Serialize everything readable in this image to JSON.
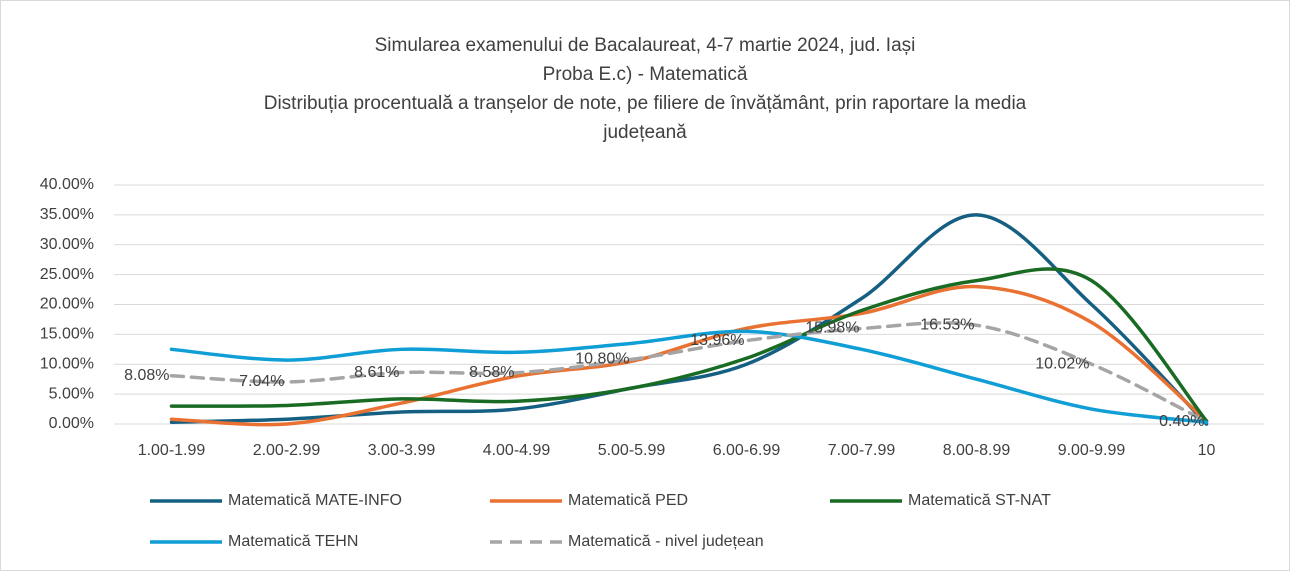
{
  "chart_data": {
    "type": "line",
    "title": [
      "Simularea examenului de Bacalaureat, 4-7 martie 2024, jud. Iași",
      "Proba E.c) - Matematică",
      "Distribuția procentuală a tranșelor de note, pe filiere de învățământ, prin raportare la media",
      "județeană"
    ],
    "categories": [
      "1.00-1.99",
      "2.00-2.99",
      "3.00-3.99",
      "4.00-4.99",
      "5.00-5.99",
      "6.00-6.99",
      "7.00-7.99",
      "8.00-8.99",
      "9.00-9.99",
      "10"
    ],
    "ylim": [
      0,
      40
    ],
    "yticks": [
      {
        "value": 0,
        "label": "0.00%"
      },
      {
        "value": 5,
        "label": "5.00%"
      },
      {
        "value": 10,
        "label": "10.00%"
      },
      {
        "value": 15,
        "label": "15.00%"
      },
      {
        "value": 20,
        "label": "20.00%"
      },
      {
        "value": 25,
        "label": "25.00%"
      },
      {
        "value": 30,
        "label": "30.00%"
      },
      {
        "value": 35,
        "label": "35.00%"
      },
      {
        "value": 40,
        "label": "40.00%"
      }
    ],
    "grid": true,
    "smooth": true,
    "legend": "bottom",
    "series": [
      {
        "name": "Matematică MATE-INFO",
        "color": "#156082",
        "values": [
          0.3,
          0.8,
          2.0,
          2.5,
          6,
          10,
          21,
          35,
          20,
          0
        ]
      },
      {
        "name": "Matematică PED",
        "color": "#e97132",
        "values": [
          0.8,
          0,
          3.5,
          8,
          10.5,
          16,
          18.5,
          23,
          17,
          0.5
        ]
      },
      {
        "name": "Matematică ST-NAT",
        "color": "#196b24",
        "values": [
          3,
          3.1,
          4.2,
          3.8,
          6,
          11,
          19,
          24,
          24,
          0.5
        ]
      },
      {
        "name": "Matematică TEHN",
        "color": "#0f9ed5",
        "values": [
          12.5,
          10.7,
          12.5,
          12,
          13.5,
          15.5,
          12.5,
          7.5,
          2.5,
          0.3
        ]
      },
      {
        "name": "Matematică - nivel județean",
        "color": "#a5a5a5",
        "dashed": true,
        "values": [
          8.08,
          7.04,
          8.61,
          8.58,
          10.8,
          13.96,
          15.98,
          16.53,
          10.02,
          0.4
        ],
        "value_labels": [
          "8.08%",
          "7.04%",
          "8.61%",
          "8.58%",
          "10.80%",
          "13.96%",
          "15.98%",
          "16.53%",
          "10.02%",
          "0.40%"
        ]
      }
    ]
  }
}
